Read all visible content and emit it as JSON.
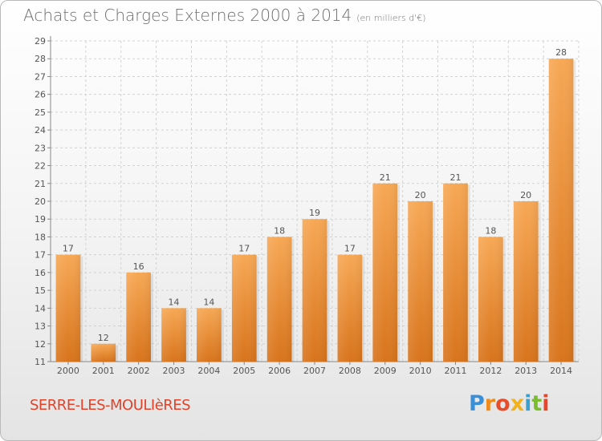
{
  "header": {
    "title": "Achats et Charges Externes 2000 à 2014",
    "subtitle": "(en milliers d'€)"
  },
  "footer": {
    "town": "SERRE-LES-MOULIèRES",
    "logo": "Proxiti"
  },
  "colors": {
    "bar_top": "#f7a855",
    "bar_bottom": "#d8741c",
    "text": "#6e6e6e",
    "town": "#e0432a"
  },
  "chart_data": {
    "type": "bar",
    "title": "Achats et Charges Externes 2000 à 2014",
    "subtitle": "(en milliers d'€)",
    "categories": [
      "2000",
      "2001",
      "2002",
      "2003",
      "2004",
      "2005",
      "2006",
      "2007",
      "2008",
      "2009",
      "2010",
      "2011",
      "2012",
      "2013",
      "2014"
    ],
    "values": [
      17,
      12,
      16,
      14,
      14,
      17,
      18,
      19,
      17,
      21,
      20,
      21,
      18,
      20,
      28
    ],
    "ylim": [
      11,
      29
    ],
    "yticks": [
      11,
      12,
      13,
      14,
      15,
      16,
      17,
      18,
      19,
      20,
      21,
      22,
      23,
      24,
      25,
      26,
      27,
      28,
      29
    ],
    "grid": true
  }
}
